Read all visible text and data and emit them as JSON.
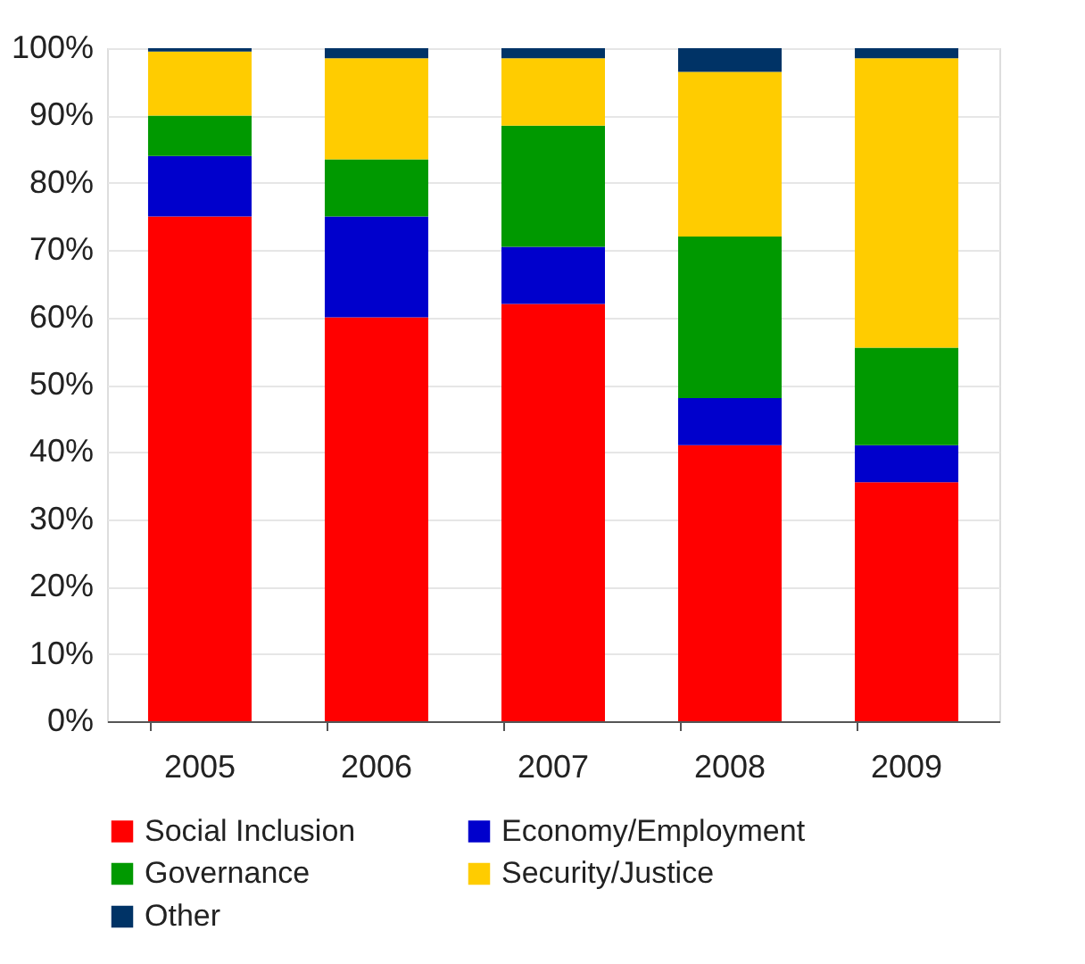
{
  "chart_data": {
    "type": "bar",
    "stacked": true,
    "categories": [
      "2005",
      "2006",
      "2007",
      "2008",
      "2009"
    ],
    "series": [
      {
        "name": "Social Inclusion",
        "color": "#ff0000",
        "values": [
          75,
          60,
          62,
          41,
          35.5
        ]
      },
      {
        "name": "Economy/Employment",
        "color": "#0000cc",
        "values": [
          9,
          15,
          8.5,
          7,
          5.5
        ]
      },
      {
        "name": "Governance",
        "color": "#009900",
        "values": [
          6,
          8.5,
          18,
          24,
          14.5
        ]
      },
      {
        "name": "Security/Justice",
        "color": "#ffcc00",
        "values": [
          9.5,
          15,
          10,
          24.5,
          43
        ]
      },
      {
        "name": "Other",
        "color": "#003366",
        "values": [
          0.5,
          1.5,
          1.5,
          3.5,
          1.5
        ]
      }
    ],
    "ylim": [
      0,
      100
    ],
    "yticks": [
      {
        "value": 0,
        "label": "0%"
      },
      {
        "value": 10,
        "label": "10%"
      },
      {
        "value": 20,
        "label": "20%"
      },
      {
        "value": 30,
        "label": "30%"
      },
      {
        "value": 40,
        "label": "40%"
      },
      {
        "value": 50,
        "label": "50%"
      },
      {
        "value": 60,
        "label": "60%"
      },
      {
        "value": 70,
        "label": "70%"
      },
      {
        "value": 80,
        "label": "80%"
      },
      {
        "value": 90,
        "label": "90%"
      },
      {
        "value": 100,
        "label": "100%"
      }
    ],
    "grid": "y",
    "legend": "bottom"
  }
}
